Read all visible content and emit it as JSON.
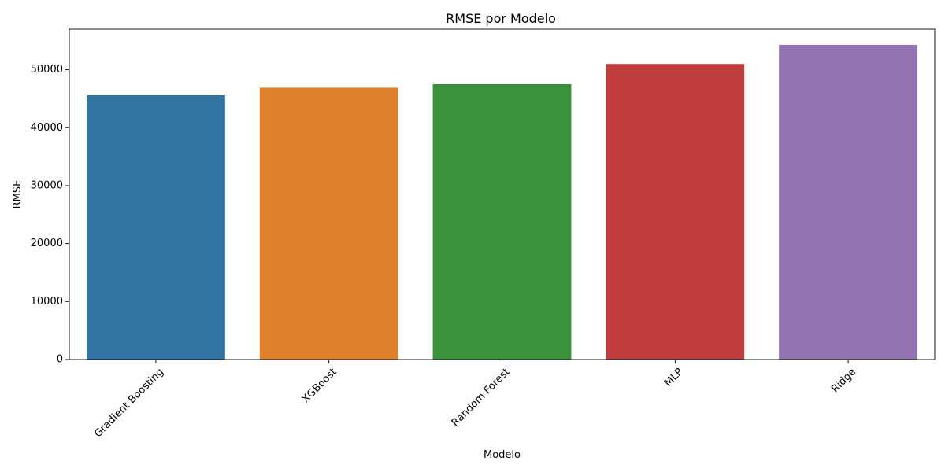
{
  "chart_data": {
    "type": "bar",
    "title": "RMSE por Modelo",
    "xlabel": "Modelo",
    "ylabel": "RMSE",
    "categories": [
      "Gradient Boosting",
      "XGBoost",
      "Random Forest",
      "MLP",
      "Ridge"
    ],
    "values": [
      45600,
      46900,
      47500,
      51000,
      54300
    ],
    "colors": [
      "#3274a1",
      "#e1812c",
      "#3a923a",
      "#c03d3e",
      "#9372b2"
    ],
    "ylim": [
      0,
      57000
    ],
    "yticks": [
      0,
      10000,
      20000,
      30000,
      40000,
      50000
    ],
    "ytick_labels": [
      "0",
      "10000",
      "20000",
      "30000",
      "40000",
      "50000"
    ],
    "xtick_rotation_deg": 45,
    "grid": false,
    "legend": "none"
  }
}
